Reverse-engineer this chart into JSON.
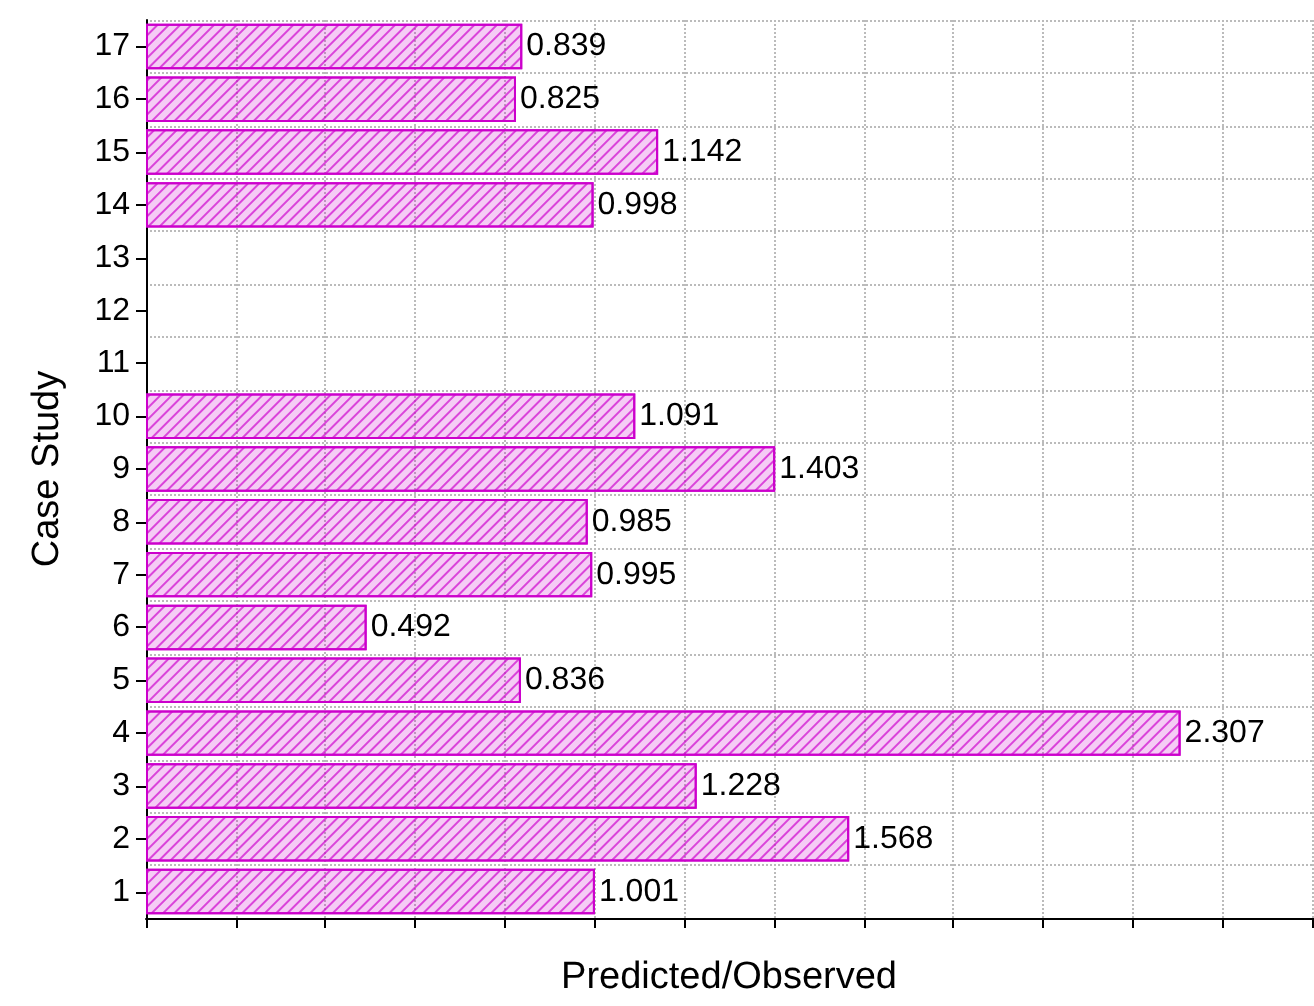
{
  "chart_data": {
    "type": "bar",
    "orientation": "horizontal",
    "xlabel": "Predicted/Observed",
    "ylabel": "Case Study",
    "categories": [
      "17",
      "16",
      "15",
      "14",
      "13",
      "12",
      "11",
      "10",
      "9",
      "8",
      "7",
      "6",
      "5",
      "4",
      "3",
      "2",
      "1"
    ],
    "values": [
      0.839,
      0.825,
      1.142,
      0.998,
      null,
      null,
      null,
      1.091,
      1.403,
      0.985,
      0.995,
      0.492,
      0.836,
      2.307,
      1.228,
      1.568,
      1.001
    ],
    "color": "#cc00cc",
    "data_labels": true,
    "xlim": [
      0,
      2.6
    ],
    "xticks": [
      {
        "value": 0,
        "label": null
      },
      {
        "value": 0.2,
        "label": null
      },
      {
        "value": 0.4,
        "label": null
      },
      {
        "value": 0.6,
        "label": null
      },
      {
        "value": 0.8,
        "label": null
      },
      {
        "value": 1.0,
        "label": null
      },
      {
        "value": 1.2,
        "label": null
      },
      {
        "value": 1.4,
        "label": null
      },
      {
        "value": 1.6,
        "label": null
      },
      {
        "value": 1.8,
        "label": null
      },
      {
        "value": 2.0,
        "label": null
      },
      {
        "value": 2.2,
        "label": null
      },
      {
        "value": 2.4,
        "label": null
      },
      {
        "value": 2.6,
        "label": null
      }
    ],
    "tick_labels": "y",
    "grid": true
  }
}
